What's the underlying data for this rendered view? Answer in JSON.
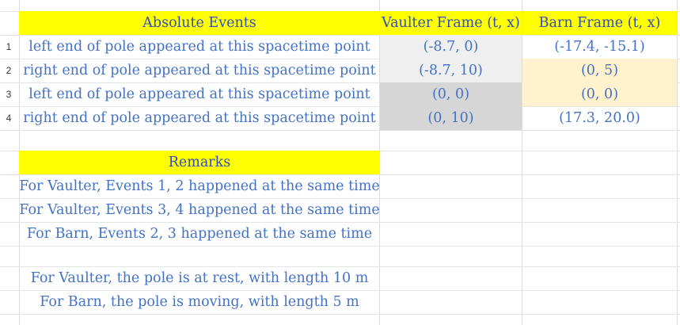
{
  "table": {
    "headers": {
      "events": "Absolute Events",
      "vaulter": "Vaulter Frame (t, x)",
      "barn": "Barn Frame (t, x)"
    },
    "rows": [
      {
        "num": "1",
        "event": "left end of pole appeared at this spacetime point",
        "vaulter": "(-8.7, 0)",
        "barn": "(-17.4, -15.1)"
      },
      {
        "num": "2",
        "event": "right end of pole appeared at this spacetime point",
        "vaulter": "(-8.7, 10)",
        "barn": "(0, 5)"
      },
      {
        "num": "3",
        "event": "left end of pole appeared at this spacetime point",
        "vaulter": "(0, 0)",
        "barn": "(0, 0)"
      },
      {
        "num": "4",
        "event": "right end of pole appeared at this spacetime point",
        "vaulter": "(0, 10)",
        "barn": "(17.3, 20.0)"
      }
    ]
  },
  "remarks": {
    "title": "Remarks",
    "lines": [
      "For Vaulter, Events 1, 2 happened at the same time",
      "For Vaulter, Events 3, 4 happened at the same time",
      "For Barn, Events 2, 3 happened at the same time",
      "For Vaulter, the pole is at rest, with length 10 m",
      "For Barn, the pole is moving, with length 5 m"
    ]
  },
  "colors": {
    "header_fill": "#ffff00",
    "header_text": "#2f4fbf",
    "body_text": "#4472c4",
    "light_gray": "#efefef",
    "dark_gray": "#d6d6d6",
    "cream": "#fff2cc"
  }
}
